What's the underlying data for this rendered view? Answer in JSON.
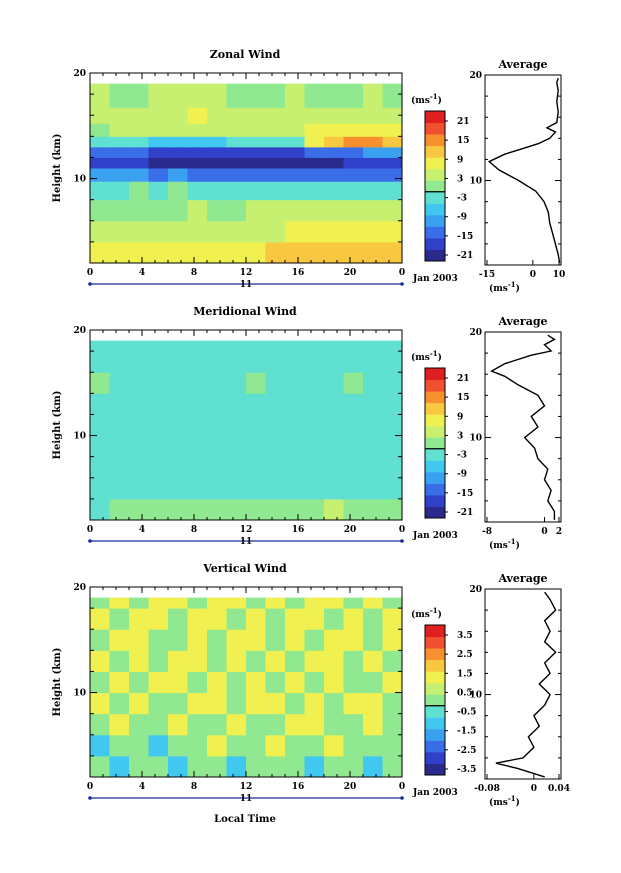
{
  "panels": [
    {
      "id": "zonal",
      "title": "Zonal Wind",
      "ylabel": "Height (km)",
      "ytick_labels": [
        "20",
        "10"
      ],
      "xtick_labels": [
        "0",
        "4",
        "8",
        "12",
        "16",
        "20",
        "0"
      ],
      "day_label": "11",
      "date_label": "Jan 2003",
      "colorbar_unit": "(ms",
      "colorbar_unit_exp": "-1",
      "colorbar_unit_close": ")",
      "colorbar_ticks": [
        "21",
        "15",
        "9",
        "3",
        "-3",
        "-9",
        "-15",
        "-21"
      ],
      "profile_title": "Average",
      "profile_xticks": [
        "-15",
        "0",
        "10"
      ],
      "profile_yticks": [
        "20",
        "10"
      ]
    },
    {
      "id": "meridional",
      "title": "Meridional Wind",
      "ylabel": "Height (km)",
      "ytick_labels": [
        "20",
        "10"
      ],
      "xtick_labels": [
        "0",
        "4",
        "8",
        "12",
        "16",
        "20",
        "0"
      ],
      "day_label": "11",
      "date_label": "Jan 2003",
      "colorbar_unit": "(ms",
      "colorbar_unit_exp": "-1",
      "colorbar_unit_close": ")",
      "colorbar_ticks": [
        "21",
        "15",
        "9",
        "3",
        "-3",
        "-9",
        "-15",
        "-21"
      ],
      "profile_title": "Average",
      "profile_xticks": [
        "-8",
        "0",
        "2"
      ],
      "profile_yticks": [
        "20",
        "10"
      ]
    },
    {
      "id": "vertical",
      "title": "Vertical Wind",
      "ylabel": "Height (km)",
      "ytick_labels": [
        "20",
        "10"
      ],
      "xtick_labels": [
        "0",
        "4",
        "8",
        "12",
        "16",
        "20",
        "0"
      ],
      "day_label": "11",
      "date_label": "Jan 2003",
      "xlabel": "Local Time",
      "colorbar_unit": "(ms",
      "colorbar_unit_exp": "-1",
      "colorbar_unit_close": ")",
      "colorbar_ticks": [
        "3.5",
        "2.5",
        "1.5",
        "0.5",
        "-0.5",
        "-1.5",
        "-2.5",
        "-3.5"
      ],
      "profile_title": "Average",
      "profile_xticks": [
        "-0.08",
        "0",
        "0.04"
      ],
      "profile_yticks": [
        "20",
        "10"
      ]
    }
  ],
  "colors": {
    "scale": [
      "#2a2a8c",
      "#3140c8",
      "#3a6ee8",
      "#3aa0f0",
      "#40c8f0",
      "#60e0d0",
      "#90e890",
      "#c8f070",
      "#f0f050",
      "#f8c840",
      "#f89030",
      "#f05030",
      "#e02020"
    ]
  },
  "chart_data": [
    {
      "type": "heatmap",
      "title": "Zonal Wind",
      "ylabel": "Height (km)",
      "xlim": [
        0,
        24
      ],
      "ylim": [
        2,
        20
      ],
      "colorbar_range": [
        -24,
        24
      ],
      "rows": [
        {
          "y": 3,
          "values": [
            6,
            6,
            7,
            7,
            8,
            8,
            8,
            9,
            9,
            10,
            10,
            11,
            11,
            11,
            12,
            12
          ]
        },
        {
          "y": 5,
          "values": [
            3,
            3,
            4,
            4,
            5,
            4,
            4,
            4,
            5,
            5,
            6,
            6,
            6,
            7,
            7,
            7
          ]
        },
        {
          "y": 7,
          "values": [
            0,
            -1,
            0,
            1,
            1,
            2,
            1,
            1,
            2,
            2,
            3,
            3,
            2,
            3,
            3,
            3
          ]
        },
        {
          "y": 9,
          "values": [
            -3,
            -2,
            -1,
            -2,
            -1,
            -2,
            -3,
            -3,
            -2,
            -2,
            -2,
            -3,
            -4,
            -3,
            -4,
            -3
          ]
        },
        {
          "y": 10.5,
          "values": [
            -10,
            -11,
            -12,
            -13,
            -12,
            -13,
            -15,
            -15,
            -14,
            -14,
            -15,
            -16,
            -15,
            -14,
            -14,
            -13
          ]
        },
        {
          "y": 11.5,
          "values": [
            -17,
            -18,
            -20,
            -22,
            -23,
            -22,
            -24,
            -24,
            -23,
            -23,
            -22,
            -22,
            -21,
            -20,
            -19,
            -18
          ]
        },
        {
          "y": 12.5,
          "values": [
            -14,
            -15,
            -16,
            -17,
            -19,
            -18,
            -20,
            -20,
            -19,
            -18,
            -17,
            -16,
            -14,
            -13,
            -12,
            -11
          ]
        },
        {
          "y": 13.5,
          "values": [
            -2,
            -3,
            -4,
            -6,
            -7,
            -7,
            -6,
            -5,
            -5,
            -4,
            -3,
            6,
            12,
            14,
            14,
            12
          ]
        },
        {
          "y": 14.5,
          "values": [
            1,
            2,
            2,
            3,
            4,
            5,
            4,
            4,
            3,
            3,
            5,
            6,
            7,
            8,
            9,
            8
          ]
        },
        {
          "y": 16,
          "values": [
            4,
            5,
            5,
            3,
            4,
            6,
            5,
            4,
            3,
            4,
            3,
            3,
            2,
            3,
            3,
            3
          ]
        },
        {
          "y": 17.5,
          "values": [
            2,
            0,
            1,
            3,
            2,
            3,
            2,
            1,
            0,
            1,
            2,
            1,
            0,
            1,
            2,
            1
          ]
        }
      ],
      "profile": {
        "title": "Average",
        "xlim": [
          -17,
          10
        ],
        "points": [
          [
            9.5,
            2.2
          ],
          [
            9,
            3
          ],
          [
            8,
            4
          ],
          [
            7,
            5
          ],
          [
            6,
            6
          ],
          [
            5.5,
            7
          ],
          [
            4,
            8
          ],
          [
            1,
            9
          ],
          [
            -5,
            10
          ],
          [
            -12,
            11
          ],
          [
            -15.5,
            11.8
          ],
          [
            -10,
            12.5
          ],
          [
            -4,
            13
          ],
          [
            2,
            13.5
          ],
          [
            6,
            14
          ],
          [
            8,
            14.6
          ],
          [
            5,
            15
          ],
          [
            8.5,
            15.5
          ],
          [
            9,
            16.5
          ],
          [
            8.5,
            17.5
          ],
          [
            9,
            18.5
          ],
          [
            8.5,
            19.3
          ],
          [
            9,
            19.7
          ]
        ]
      }
    },
    {
      "type": "heatmap",
      "title": "Meridional Wind",
      "ylabel": "Height (km)",
      "xlim": [
        0,
        24
      ],
      "ylim": [
        2,
        20
      ],
      "colorbar_range": [
        -24,
        24
      ],
      "rows": [
        {
          "y": 3,
          "values": [
            -2,
            -1,
            -1,
            0,
            -1,
            -1,
            0,
            0,
            0,
            1,
            1,
            1,
            2,
            1,
            0,
            1
          ]
        },
        {
          "y": 5,
          "values": [
            -3,
            -3,
            -2,
            -2,
            -3,
            -3,
            -2,
            -2,
            -3,
            -3,
            -2,
            -2,
            -3,
            -2,
            -2,
            -2
          ]
        },
        {
          "y": 7,
          "values": [
            -4,
            -4,
            -3,
            -4,
            -5,
            -5,
            -4,
            -4,
            -5,
            -5,
            -4,
            -4,
            -5,
            -4,
            -4,
            -4
          ]
        },
        {
          "y": 9,
          "values": [
            -3,
            -3,
            -4,
            -3,
            -3,
            -4,
            -4,
            -3,
            -3,
            -4,
            -4,
            -4,
            -3,
            -3,
            -3,
            -3
          ]
        },
        {
          "y": 11,
          "values": [
            -2,
            -3,
            -4,
            -4,
            -3,
            -3,
            -4,
            -3,
            -3,
            -2,
            -3,
            -3,
            -4,
            -3,
            -2,
            -2
          ]
        },
        {
          "y": 13,
          "values": [
            -3,
            -2,
            -3,
            -3,
            -2,
            -3,
            -3,
            -2,
            -2,
            -3,
            -2,
            -2,
            -3,
            -2,
            -3,
            -2
          ]
        },
        {
          "y": 15,
          "values": [
            -1,
            -2,
            -2,
            -3,
            -4,
            -3,
            -2,
            -2,
            -1,
            -2,
            -3,
            -3,
            -2,
            -1,
            -2,
            -2
          ]
        },
        {
          "y": 17,
          "values": [
            -4,
            -4,
            -5,
            -3,
            -2,
            -3,
            -3,
            -4,
            -3,
            -3,
            -2,
            -3,
            -4,
            -3,
            -3,
            -2
          ]
        }
      ],
      "profile": {
        "title": "Average",
        "xlim": [
          -9,
          2.5
        ],
        "points": [
          [
            1.5,
            2.2
          ],
          [
            1.5,
            3
          ],
          [
            0.5,
            4
          ],
          [
            1,
            5
          ],
          [
            0,
            6
          ],
          [
            0.5,
            7
          ],
          [
            -1,
            8
          ],
          [
            -1.5,
            9
          ],
          [
            -3,
            10
          ],
          [
            -1,
            11
          ],
          [
            -2,
            12
          ],
          [
            0,
            13
          ],
          [
            -1,
            14
          ],
          [
            -4,
            15
          ],
          [
            -6,
            15.8
          ],
          [
            -8,
            16.3
          ],
          [
            -6,
            17
          ],
          [
            -2,
            17.8
          ],
          [
            1,
            18.2
          ],
          [
            0,
            18.8
          ],
          [
            1.5,
            19.3
          ],
          [
            0.5,
            19.7
          ]
        ]
      }
    },
    {
      "type": "heatmap",
      "title": "Vertical Wind",
      "ylabel": "Height (km)",
      "xlabel": "Local Time",
      "xlim": [
        0,
        24
      ],
      "ylim": [
        2,
        20
      ],
      "colorbar_range": [
        -4,
        4
      ],
      "rows": [
        {
          "y": 3,
          "values": [
            0,
            -1,
            0,
            0,
            -1,
            0,
            0,
            -1,
            0,
            0,
            0,
            -1,
            0,
            0,
            -1,
            0
          ]
        },
        {
          "y": 5,
          "values": [
            -1,
            0,
            0,
            -1,
            0,
            0,
            1,
            0,
            0,
            1,
            0,
            0,
            1,
            0,
            0,
            0
          ]
        },
        {
          "y": 7,
          "values": [
            0,
            1,
            0,
            0,
            1,
            0,
            0,
            1,
            0,
            0,
            1,
            1,
            0,
            0,
            1,
            0
          ]
        },
        {
          "y": 9,
          "values": [
            1,
            0,
            1,
            0,
            0,
            1,
            1,
            0,
            1,
            1,
            0,
            1,
            0,
            1,
            1,
            0
          ]
        },
        {
          "y": 11,
          "values": [
            0,
            1,
            0,
            1,
            1,
            0,
            1,
            0,
            1,
            0,
            1,
            0,
            1,
            0,
            0,
            1
          ]
        },
        {
          "y": 13,
          "values": [
            1,
            0,
            1,
            0,
            1,
            1,
            0,
            1,
            0,
            1,
            0,
            1,
            1,
            0,
            1,
            0
          ]
        },
        {
          "y": 15,
          "values": [
            0,
            1,
            1,
            0,
            0,
            1,
            0,
            1,
            1,
            0,
            1,
            0,
            1,
            1,
            0,
            1
          ]
        },
        {
          "y": 17,
          "values": [
            1,
            0,
            1,
            1,
            0,
            1,
            1,
            0,
            1,
            0,
            1,
            1,
            0,
            1,
            0,
            1
          ]
        },
        {
          "y": 19,
          "values": [
            0,
            1,
            0,
            1,
            1,
            0,
            1,
            1,
            0,
            1,
            0,
            1,
            1,
            0,
            1,
            0
          ]
        }
      ],
      "profile": {
        "title": "Average",
        "xlim": [
          -0.09,
          0.05
        ],
        "points": [
          [
            0.02,
            2.2
          ],
          [
            -0.03,
            3
          ],
          [
            -0.07,
            3.5
          ],
          [
            -0.02,
            4
          ],
          [
            0,
            5
          ],
          [
            -0.01,
            6
          ],
          [
            0.01,
            7
          ],
          [
            0,
            8
          ],
          [
            0.02,
            9
          ],
          [
            0.03,
            10
          ],
          [
            0.01,
            11
          ],
          [
            0.03,
            12
          ],
          [
            0.02,
            13
          ],
          [
            0.04,
            14
          ],
          [
            0.02,
            15
          ],
          [
            0.03,
            16
          ],
          [
            0.02,
            17
          ],
          [
            0.04,
            18
          ],
          [
            0.03,
            19
          ],
          [
            0.02,
            19.7
          ]
        ]
      }
    }
  ]
}
